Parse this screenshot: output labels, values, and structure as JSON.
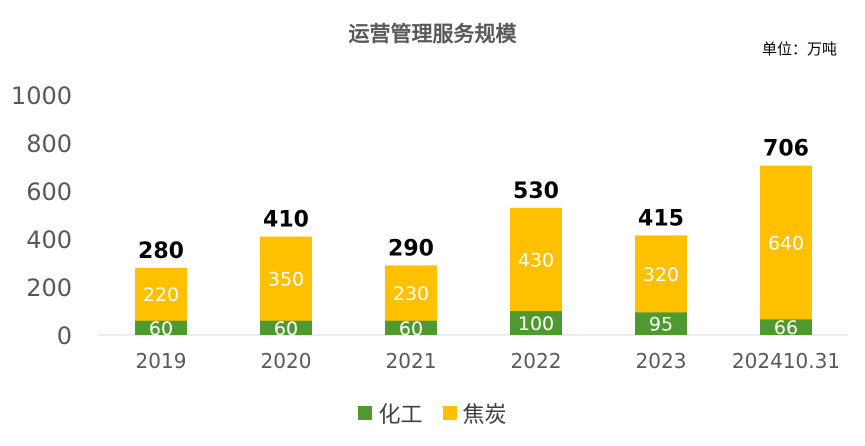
{
  "chart_data": {
    "type": "bar",
    "stacked": true,
    "title": "运营管理服务规模",
    "unit_note": "单位：万吨",
    "categories": [
      "2019",
      "2020",
      "2021",
      "2022",
      "2023",
      "202410.31"
    ],
    "series": [
      {
        "name": "化工",
        "color": "#4e9a2f",
        "values": [
          60,
          60,
          60,
          100,
          95,
          66
        ]
      },
      {
        "name": "焦炭",
        "color": "#ffc000",
        "values": [
          220,
          350,
          230,
          430,
          320,
          640
        ]
      }
    ],
    "totals": [
      280,
      410,
      290,
      530,
      415,
      706
    ],
    "ylim": [
      0,
      1000
    ],
    "yticks": [
      0,
      200,
      400,
      600,
      800,
      1000
    ],
    "grid": false,
    "legend_position": "bottom"
  }
}
